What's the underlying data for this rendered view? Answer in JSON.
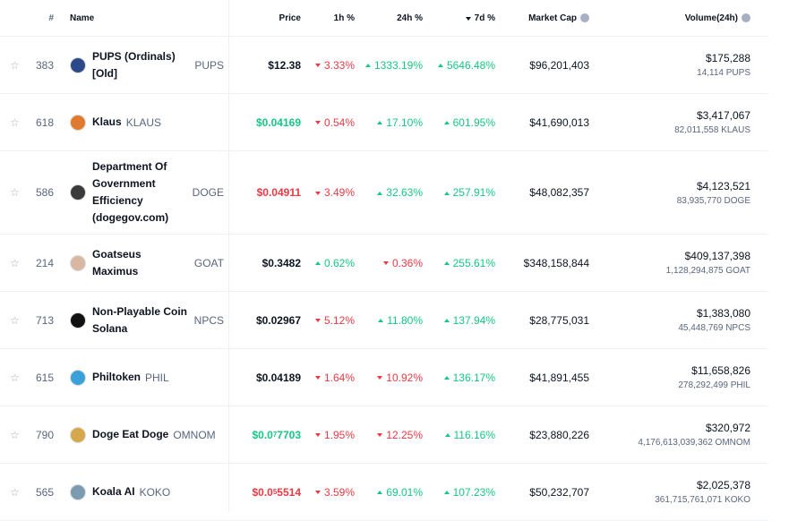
{
  "header": {
    "rank": "#",
    "name": "Name",
    "price": "Price",
    "h1": "1h %",
    "h24": "24h %",
    "d7": "7d %",
    "market_cap": "Market Cap",
    "volume": "Volume(24h)"
  },
  "rows": [
    {
      "rank": "383",
      "name": "PUPS (Ordinals) [Old]",
      "symbol": "PUPS",
      "price": "$12.38",
      "price_color": "black",
      "h1": {
        "text": "3.33%",
        "dir": "down"
      },
      "h24": {
        "text": "1333.19%",
        "dir": "up"
      },
      "d7": {
        "text": "5646.48%",
        "dir": "up"
      },
      "market_cap": "$96,201,403",
      "volume": "$175,288",
      "volume_coin": "14,114 PUPS",
      "icon": "#2c4a8a"
    },
    {
      "rank": "618",
      "name": "Klaus",
      "symbol": "KLAUS",
      "price": "$0.04169",
      "price_color": "green",
      "h1": {
        "text": "0.54%",
        "dir": "down"
      },
      "h24": {
        "text": "17.10%",
        "dir": "up"
      },
      "d7": {
        "text": "601.95%",
        "dir": "up"
      },
      "market_cap": "$41,690,013",
      "volume": "$3,417,067",
      "volume_coin": "82,011,558 KLAUS",
      "icon": "#e07a2e"
    },
    {
      "rank": "586",
      "name": "Department Of Government Efficiency (dogegov.com)",
      "symbol": "DOGE",
      "price": "$0.04911",
      "price_color": "red",
      "h1": {
        "text": "3.49%",
        "dir": "down"
      },
      "h24": {
        "text": "32.63%",
        "dir": "up"
      },
      "d7": {
        "text": "257.91%",
        "dir": "up"
      },
      "market_cap": "$48,082,357",
      "volume": "$4,123,521",
      "volume_coin": "83,935,770 DOGE",
      "icon": "#3a3a3a"
    },
    {
      "rank": "214",
      "name": "Goatseus Maximus",
      "symbol": "GOAT",
      "price": "$0.3482",
      "price_color": "black",
      "h1": {
        "text": "0.62%",
        "dir": "up"
      },
      "h24": {
        "text": "0.36%",
        "dir": "down"
      },
      "d7": {
        "text": "255.61%",
        "dir": "up"
      },
      "market_cap": "$348,158,844",
      "volume": "$409,137,398",
      "volume_coin": "1,128,294,875 GOAT",
      "icon": "#d9b7a3"
    },
    {
      "rank": "713",
      "name": "Non-Playable Coin Solana",
      "symbol": "NPCS",
      "price": "$0.02967",
      "price_color": "black",
      "h1": {
        "text": "5.12%",
        "dir": "down"
      },
      "h24": {
        "text": "11.80%",
        "dir": "up"
      },
      "d7": {
        "text": "137.94%",
        "dir": "up"
      },
      "market_cap": "$28,775,031",
      "volume": "$1,383,080",
      "volume_coin": "45,448,769 NPCS",
      "icon": "#111111"
    },
    {
      "rank": "615",
      "name": "Philtoken",
      "symbol": "PHIL",
      "price": "$0.04189",
      "price_color": "black",
      "h1": {
        "text": "1.64%",
        "dir": "down"
      },
      "h24": {
        "text": "10.92%",
        "dir": "down"
      },
      "d7": {
        "text": "136.17%",
        "dir": "up"
      },
      "market_cap": "$41,891,455",
      "volume": "$11,658,826",
      "volume_coin": "278,292,499 PHIL",
      "icon": "#3aa0d8"
    },
    {
      "rank": "790",
      "name": "Doge Eat Doge",
      "symbol": "OMNOM",
      "price": {
        "lead": "$0.0",
        "zeros": "7",
        "digits": "7703"
      },
      "price_color": "green",
      "h1": {
        "text": "1.95%",
        "dir": "down"
      },
      "h24": {
        "text": "12.25%",
        "dir": "down"
      },
      "d7": {
        "text": "116.16%",
        "dir": "up"
      },
      "market_cap": "$23,880,226",
      "volume": "$320,972",
      "volume_coin": "4,176,613,039,362 OMNOM",
      "icon": "#d6a84c"
    },
    {
      "rank": "565",
      "name": "Koala AI",
      "symbol": "KOKO",
      "price": {
        "lead": "$0.0",
        "zeros": "5",
        "digits": "5514"
      },
      "price_color": "red",
      "h1": {
        "text": "3.59%",
        "dir": "down"
      },
      "h24": {
        "text": "69.01%",
        "dir": "up"
      },
      "d7": {
        "text": "107.23%",
        "dir": "up"
      },
      "market_cap": "$50,232,707",
      "volume": "$2,025,378",
      "volume_coin": "361,715,761,071 KOKO",
      "icon": "#7a9bb0"
    }
  ]
}
